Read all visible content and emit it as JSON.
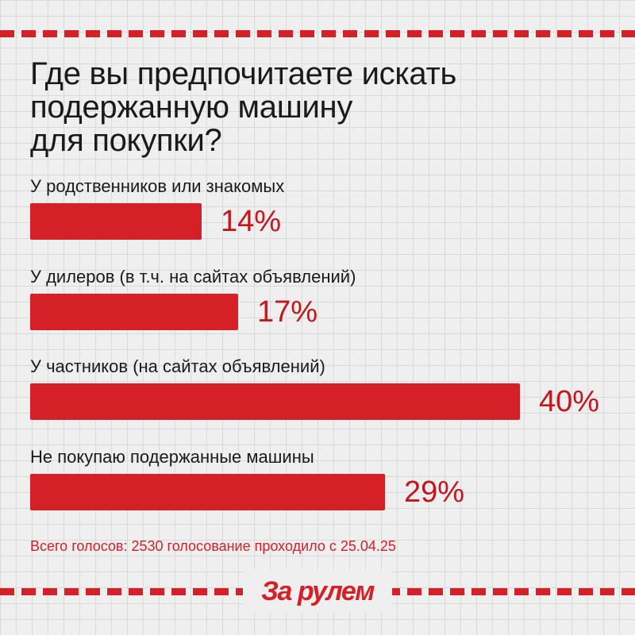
{
  "title_lines": [
    "Где вы предпочитаете искать",
    "подержанную машину",
    "для покупки?"
  ],
  "chart_data": {
    "type": "bar",
    "orientation": "horizontal",
    "categories": [
      "У родственников или знакомых",
      "У дилеров (в т.ч. на сайтах объявлений)",
      "У частников (на сайтах объявлений)",
      "Не покупаю подержанные машины"
    ],
    "values": [
      14,
      17,
      40,
      29
    ],
    "value_labels": [
      "14%",
      "17%",
      "40%",
      "29%"
    ],
    "unit": "%",
    "xlim": [
      0,
      40
    ],
    "bar_color": "#d62027",
    "grid": false
  },
  "footer": {
    "note": "Всего голосов: 2530 голосование проходило с 25.04.25"
  },
  "brand": {
    "logo_text": "За рулем",
    "color": "#d62027"
  }
}
